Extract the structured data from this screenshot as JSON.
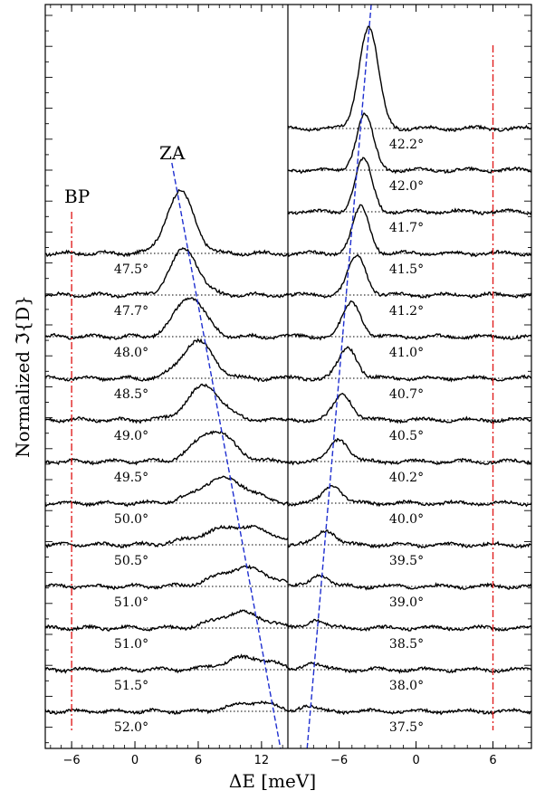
{
  "chart_data": {
    "type": "line",
    "xlabel": "ΔE [meV]",
    "ylabel": "Normalized ℑ{D}",
    "colors": {
      "trace": "#000000",
      "za_guide": "#1f2fd0",
      "bp_guide": "#e02020",
      "baseline": "#000000"
    },
    "annotations": [
      {
        "text": "ZA"
      },
      {
        "text": "BP"
      }
    ],
    "panels": [
      {
        "side": "left",
        "xlim": [
          -8.5,
          14.5
        ],
        "xticks": [
          -6,
          0,
          6,
          12
        ],
        "xtick_labels": [
          "−6",
          "0",
          "6",
          "12"
        ],
        "bp_line_x": -6,
        "za_line": {
          "x_top": 3.5,
          "x_bottom": 13.8
        },
        "traces": [
          {
            "label": "47.5°",
            "peak_x": 4.3,
            "peak_h": 2.0,
            "width": 1.3
          },
          {
            "label": "47.7°",
            "peak_x": 4.7,
            "peak_h": 1.5,
            "width": 1.3
          },
          {
            "label": "48.0°",
            "peak_x": 5.2,
            "peak_h": 1.3,
            "width": 1.4
          },
          {
            "label": "48.5°",
            "peak_x": 5.9,
            "peak_h": 1.2,
            "width": 1.5
          },
          {
            "label": "49.0°",
            "peak_x": 6.6,
            "peak_h": 1.1,
            "width": 1.6
          },
          {
            "label": "49.5°",
            "peak_x": 7.5,
            "peak_h": 1.0,
            "width": 1.8
          },
          {
            "label": "50.0°",
            "peak_x": 8.4,
            "peak_h": 0.8,
            "width": 2.3
          },
          {
            "label": "50.5°",
            "peak_x": 9.8,
            "peak_h": 0.6,
            "width": 3.2
          },
          {
            "label": "51.0°",
            "peak_x": 10.3,
            "peak_h": 0.6,
            "width": 2.4
          },
          {
            "label": "51.0°",
            "peak_x": 10.0,
            "peak_h": 0.5,
            "width": 2.2
          },
          {
            "label": "51.5°",
            "peak_x": 10.7,
            "peak_h": 0.4,
            "width": 2.2
          },
          {
            "label": "52.0°",
            "peak_x": 11.3,
            "peak_h": 0.3,
            "width": 2.0
          }
        ]
      },
      {
        "side": "right",
        "xlim": [
          -10,
          9
        ],
        "xticks": [
          -6,
          0,
          6
        ],
        "xtick_labels": [
          "−6",
          "0",
          "6"
        ],
        "bp_line_x": 6,
        "za_line": {
          "x_top": -3.5,
          "x_bottom": -8.5
        },
        "traces": [
          {
            "label": "42.2°",
            "peak_x": -3.7,
            "peak_h": 3.3,
            "width": 0.75
          },
          {
            "label": "42.0°",
            "peak_x": -4.0,
            "peak_h": 1.8,
            "width": 0.65
          },
          {
            "label": "41.7°",
            "peak_x": -4.1,
            "peak_h": 1.7,
            "width": 0.65
          },
          {
            "label": "41.5°",
            "peak_x": -4.3,
            "peak_h": 1.5,
            "width": 0.65
          },
          {
            "label": "41.2°",
            "peak_x": -4.6,
            "peak_h": 1.25,
            "width": 0.7
          },
          {
            "label": "41.0°",
            "peak_x": -5.0,
            "peak_h": 1.1,
            "width": 0.7
          },
          {
            "label": "40.7°",
            "peak_x": -5.3,
            "peak_h": 1.0,
            "width": 0.7
          },
          {
            "label": "40.5°",
            "peak_x": -5.7,
            "peak_h": 0.85,
            "width": 0.7
          },
          {
            "label": "40.2°",
            "peak_x": -6.0,
            "peak_h": 0.75,
            "width": 0.7
          },
          {
            "label": "40.0°",
            "peak_x": -6.5,
            "peak_h": 0.6,
            "width": 0.7
          },
          {
            "label": "39.5°",
            "peak_x": -7.0,
            "peak_h": 0.5,
            "width": 0.7
          },
          {
            "label": "39.0°",
            "peak_x": -7.5,
            "peak_h": 0.4,
            "width": 0.65
          },
          {
            "label": "38.5°",
            "peak_x": -7.8,
            "peak_h": 0.3,
            "width": 0.6
          },
          {
            "label": "38.0°",
            "peak_x": -8.2,
            "peak_h": 0.25,
            "width": 0.6
          },
          {
            "label": "37.5°",
            "peak_x": -8.6,
            "peak_h": 0.2,
            "width": 0.6
          }
        ]
      }
    ]
  }
}
